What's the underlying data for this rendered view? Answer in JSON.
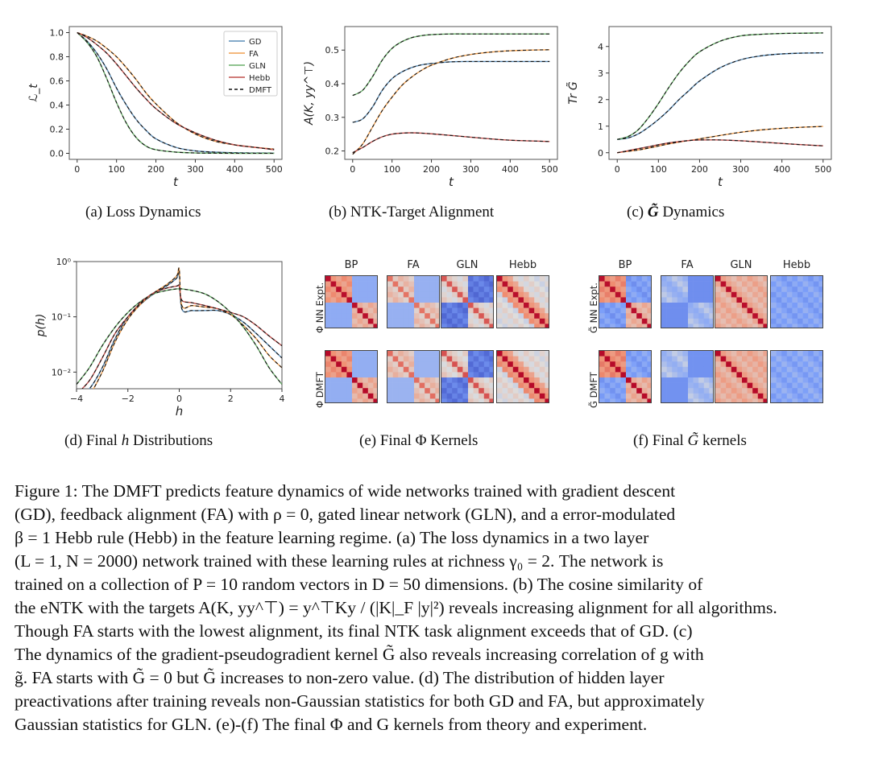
{
  "figure": {
    "panels": {
      "a": {
        "caption_label": "(a)",
        "caption_text": "Loss Dynamics"
      },
      "b": {
        "caption_label": "(b)",
        "caption_text": "NTK-Target Alignment"
      },
      "c": {
        "caption_label": "(c)",
        "caption_symbol": "G̃",
        "caption_text": "Dynamics"
      },
      "d": {
        "caption_label": "(d)",
        "caption_pre": "Final",
        "caption_symbol": "h",
        "caption_text": "Distributions"
      },
      "e": {
        "caption_label": "(e)",
        "caption_pre": "Final",
        "caption_symbol": "Φ",
        "caption_text": "Kernels"
      },
      "f": {
        "caption_label": "(f)",
        "caption_pre": "Final",
        "caption_symbol": "G̃",
        "caption_text": "kernels"
      }
    },
    "legend": [
      {
        "name": "GD",
        "color": "#5b8db8",
        "style": "solid"
      },
      {
        "name": "FA",
        "color": "#f0a050",
        "style": "solid"
      },
      {
        "name": "GLN",
        "color": "#6aaf6a",
        "style": "solid"
      },
      {
        "name": "Hebb",
        "color": "#c0504d",
        "style": "solid"
      },
      {
        "name": "DMFT",
        "color": "#111111",
        "style": "dashed"
      }
    ],
    "kernels_e": {
      "columns": [
        "BP",
        "FA",
        "GLN",
        "Hebb"
      ],
      "rows": [
        "Φ NN Expt.",
        "Φ DMFT"
      ]
    },
    "kernels_f": {
      "columns": [
        "BP",
        "FA",
        "GLN",
        "Hebb"
      ],
      "rows": [
        "G̃ NN Expt.",
        "G̃ DMFT"
      ]
    }
  },
  "chart_data": [
    {
      "id": "a",
      "type": "line",
      "title": "",
      "xlabel": "t",
      "ylabel": "ℒ_t",
      "xlim": [
        -20,
        520
      ],
      "ylim": [
        -0.05,
        1.05
      ],
      "xticks": [
        0,
        100,
        200,
        300,
        400,
        500
      ],
      "yticks": [
        0.0,
        0.2,
        0.4,
        0.6,
        0.8,
        1.0
      ],
      "ytick_labels": [
        "0.0",
        "0.2",
        "0.4",
        "0.6",
        "0.8",
        "1.0"
      ],
      "legend_position": "top-right",
      "x": [
        0,
        25,
        50,
        75,
        100,
        125,
        150,
        175,
        200,
        250,
        300,
        350,
        400,
        450,
        500
      ],
      "series": [
        {
          "name": "GD",
          "values": [
            1.0,
            0.93,
            0.83,
            0.7,
            0.54,
            0.4,
            0.28,
            0.19,
            0.12,
            0.05,
            0.02,
            0.01,
            0.005,
            0.003,
            0.002
          ]
        },
        {
          "name": "FA",
          "values": [
            1.0,
            0.97,
            0.93,
            0.87,
            0.8,
            0.71,
            0.61,
            0.5,
            0.41,
            0.26,
            0.16,
            0.1,
            0.07,
            0.05,
            0.035
          ]
        },
        {
          "name": "GLN",
          "values": [
            1.0,
            0.92,
            0.8,
            0.62,
            0.42,
            0.25,
            0.13,
            0.06,
            0.03,
            0.01,
            0.003,
            0.001,
            0.0,
            0.0,
            0.0
          ]
        },
        {
          "name": "Hebb",
          "values": [
            1.0,
            0.96,
            0.9,
            0.83,
            0.74,
            0.64,
            0.54,
            0.45,
            0.37,
            0.25,
            0.17,
            0.11,
            0.07,
            0.05,
            0.03
          ]
        }
      ]
    },
    {
      "id": "b",
      "type": "line",
      "xlabel": "t",
      "ylabel": "A(K, yy^⊤)",
      "xlim": [
        -20,
        520
      ],
      "ylim": [
        0.175,
        0.57
      ],
      "xticks": [
        0,
        100,
        200,
        300,
        400,
        500
      ],
      "yticks": [
        0.2,
        0.3,
        0.4,
        0.5
      ],
      "ytick_labels": [
        "0.2",
        "0.3",
        "0.4",
        "0.5"
      ],
      "x": [
        0,
        25,
        50,
        75,
        100,
        125,
        150,
        175,
        200,
        250,
        300,
        350,
        400,
        450,
        500
      ],
      "series": [
        {
          "name": "GD",
          "values": [
            0.285,
            0.295,
            0.33,
            0.38,
            0.415,
            0.435,
            0.448,
            0.456,
            0.46,
            0.465,
            0.466,
            0.466,
            0.466,
            0.466,
            0.466
          ]
        },
        {
          "name": "FA",
          "values": [
            0.19,
            0.22,
            0.27,
            0.32,
            0.36,
            0.395,
            0.42,
            0.44,
            0.455,
            0.475,
            0.487,
            0.494,
            0.498,
            0.5,
            0.501
          ]
        },
        {
          "name": "GLN",
          "values": [
            0.365,
            0.38,
            0.42,
            0.47,
            0.505,
            0.525,
            0.537,
            0.543,
            0.546,
            0.548,
            0.548,
            0.548,
            0.548,
            0.548,
            0.548
          ]
        },
        {
          "name": "Hebb",
          "values": [
            0.195,
            0.21,
            0.228,
            0.242,
            0.25,
            0.253,
            0.254,
            0.253,
            0.251,
            0.246,
            0.241,
            0.236,
            0.232,
            0.23,
            0.228
          ]
        }
      ]
    },
    {
      "id": "c",
      "type": "line",
      "xlabel": "t",
      "ylabel": "Tr G̃",
      "xlim": [
        -20,
        520
      ],
      "ylim": [
        -0.25,
        4.75
      ],
      "xticks": [
        0,
        100,
        200,
        300,
        400,
        500
      ],
      "yticks": [
        0,
        1,
        2,
        3,
        4
      ],
      "ytick_labels": [
        "0",
        "1",
        "2",
        "3",
        "4"
      ],
      "x": [
        0,
        25,
        50,
        75,
        100,
        125,
        150,
        175,
        200,
        250,
        300,
        350,
        400,
        450,
        500
      ],
      "series": [
        {
          "name": "GD",
          "values": [
            0.5,
            0.55,
            0.7,
            0.95,
            1.25,
            1.6,
            2.0,
            2.35,
            2.7,
            3.2,
            3.5,
            3.65,
            3.72,
            3.75,
            3.76
          ]
        },
        {
          "name": "FA",
          "values": [
            0.0,
            0.05,
            0.1,
            0.17,
            0.25,
            0.33,
            0.4,
            0.46,
            0.52,
            0.65,
            0.77,
            0.86,
            0.92,
            0.96,
            0.99
          ]
        },
        {
          "name": "GLN",
          "values": [
            0.5,
            0.6,
            0.85,
            1.3,
            1.85,
            2.45,
            3.0,
            3.45,
            3.8,
            4.2,
            4.4,
            4.46,
            4.49,
            4.5,
            4.51
          ]
        },
        {
          "name": "Hebb",
          "values": [
            0.0,
            0.07,
            0.15,
            0.22,
            0.3,
            0.37,
            0.42,
            0.46,
            0.48,
            0.48,
            0.45,
            0.4,
            0.35,
            0.3,
            0.26
          ]
        }
      ]
    },
    {
      "id": "d",
      "type": "line",
      "xlabel": "h",
      "ylabel": "p(h)",
      "yscale": "log",
      "xlim": [
        -4,
        4
      ],
      "ylim": [
        0.005,
        1.0
      ],
      "xticks": [
        -4,
        -2,
        0,
        2,
        4
      ],
      "xtick_labels": [
        "−4",
        "−2",
        "0",
        "2",
        "4"
      ],
      "yticks": [
        0.01,
        0.1,
        1.0
      ],
      "ytick_labels": [
        "10⁻²",
        "10⁻¹",
        "10⁰"
      ],
      "x": [
        -4,
        -3.5,
        -3,
        -2.5,
        -2,
        -1.5,
        -1,
        -0.5,
        -0.1,
        0,
        0.1,
        0.5,
        1,
        1.5,
        2,
        2.5,
        3,
        3.5,
        4
      ],
      "series": [
        {
          "name": "GD",
          "values": [
            0.003,
            0.005,
            0.012,
            0.04,
            0.1,
            0.17,
            0.26,
            0.36,
            0.5,
            0.62,
            0.14,
            0.13,
            0.13,
            0.13,
            0.11,
            0.08,
            0.05,
            0.03,
            0.018
          ]
        },
        {
          "name": "FA",
          "values": [
            0.002,
            0.004,
            0.01,
            0.035,
            0.09,
            0.17,
            0.27,
            0.38,
            0.55,
            0.72,
            0.16,
            0.16,
            0.15,
            0.14,
            0.11,
            0.07,
            0.04,
            0.02,
            0.012
          ]
        },
        {
          "name": "GLN",
          "values": [
            0.006,
            0.012,
            0.03,
            0.065,
            0.12,
            0.19,
            0.26,
            0.3,
            0.32,
            0.32,
            0.32,
            0.3,
            0.26,
            0.19,
            0.12,
            0.065,
            0.03,
            0.012,
            0.006
          ]
        },
        {
          "name": "Hebb",
          "values": [
            0.004,
            0.007,
            0.018,
            0.05,
            0.1,
            0.18,
            0.27,
            0.33,
            0.36,
            0.36,
            0.2,
            0.18,
            0.16,
            0.14,
            0.12,
            0.1,
            0.07,
            0.045,
            0.03
          ]
        }
      ]
    },
    {
      "id": "e",
      "type": "heatmap",
      "title": "Final Φ Kernels",
      "columns": [
        "BP",
        "FA",
        "GLN",
        "Hebb"
      ],
      "rows": [
        "Φ NN Expt.",
        "Φ DMFT"
      ],
      "matrix_size": 10,
      "colormap": "coolwarm"
    },
    {
      "id": "f",
      "type": "heatmap",
      "title": "Final G̃ kernels",
      "columns": [
        "BP",
        "FA",
        "GLN",
        "Hebb"
      ],
      "rows": [
        "G̃ NN Expt.",
        "G̃ DMFT"
      ],
      "matrix_size": 10,
      "colormap": "coolwarm"
    }
  ],
  "caption": {
    "lines": [
      "Figure 1:   The DMFT predicts feature dynamics of wide networks trained with gradient descent",
      "(GD), feedback alignment (FA) with ρ = 0, gated linear network (GLN), and a error-modulated",
      "β = 1 Hebb rule (Hebb) in the feature learning regime.  (a) The loss dynamics in a two layer",
      "(L = 1, N = 2000) network trained with these learning rules at richness γ₀ = 2. The network is",
      "trained on a collection of P = 10 random vectors in D = 50 dimensions. (b) The cosine similarity of",
      "the eNTK with the targets A(K, yy^⊤) = y^⊤Ky / (|K|_F |y|²) reveals increasing alignment for all algorithms.",
      "Though FA starts with the lowest alignment, its final NTK task alignment exceeds that of GD. (c)",
      "The dynamics of the gradient-pseudogradient kernel G̃ also reveals increasing correlation of g with",
      "g̃.  FA starts with G̃ = 0 but G̃ increases to non-zero value.  (d) The distribution of hidden layer",
      "preactivations after training reveals non-Gaussian statistics for both GD and FA, but approximately",
      "Gaussian statistics for GLN. (e)-(f) The final Φ and G kernels from theory and experiment."
    ]
  }
}
